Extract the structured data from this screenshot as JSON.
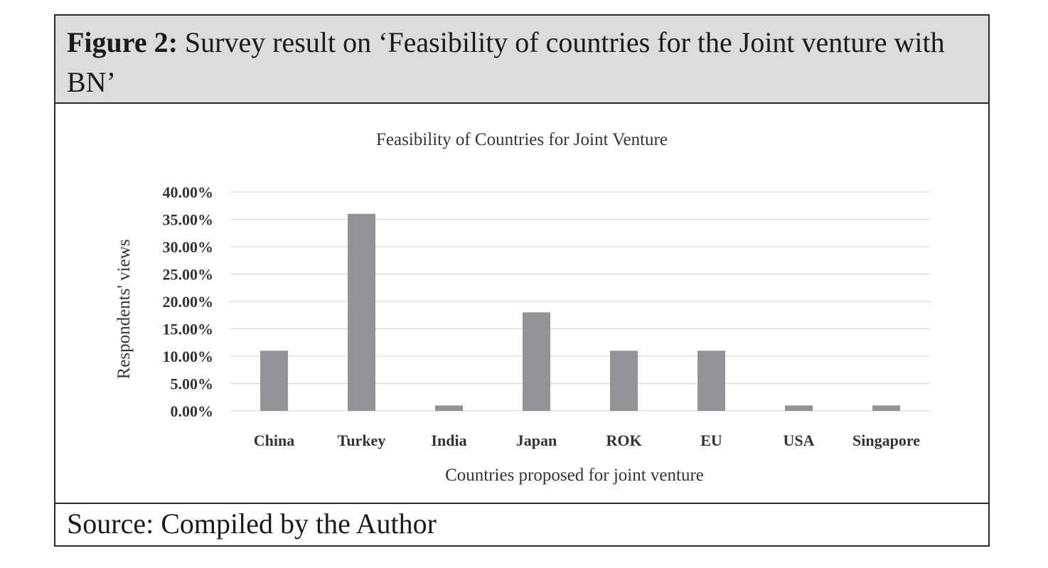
{
  "figure": {
    "label": "Figure 2:",
    "title": " Survey result on ‘Feasibility of countries for the Joint venture with BN’",
    "source": "Source: Compiled by the Author"
  },
  "chart_data": {
    "type": "bar",
    "title": "Feasibility of Countries for Joint Venture",
    "xlabel": "Countries proposed for joint venture",
    "ylabel": "Respondents' views",
    "categories": [
      "China",
      "Turkey",
      "India",
      "Japan",
      "ROK",
      "EU",
      "USA",
      "Singapore"
    ],
    "values": [
      11.0,
      36.0,
      1.0,
      18.0,
      11.0,
      11.0,
      1.0,
      1.0
    ],
    "value_unit": "%",
    "ylim": [
      0,
      40
    ],
    "yticks": [
      "0.00%",
      "5.00%",
      "10.00%",
      "15.00%",
      "20.00%",
      "25.00%",
      "30.00%",
      "35.00%",
      "40.00%"
    ],
    "grid": true,
    "legend": "none",
    "bar_color": "#939396",
    "grid_color": "#d9d9d9"
  }
}
